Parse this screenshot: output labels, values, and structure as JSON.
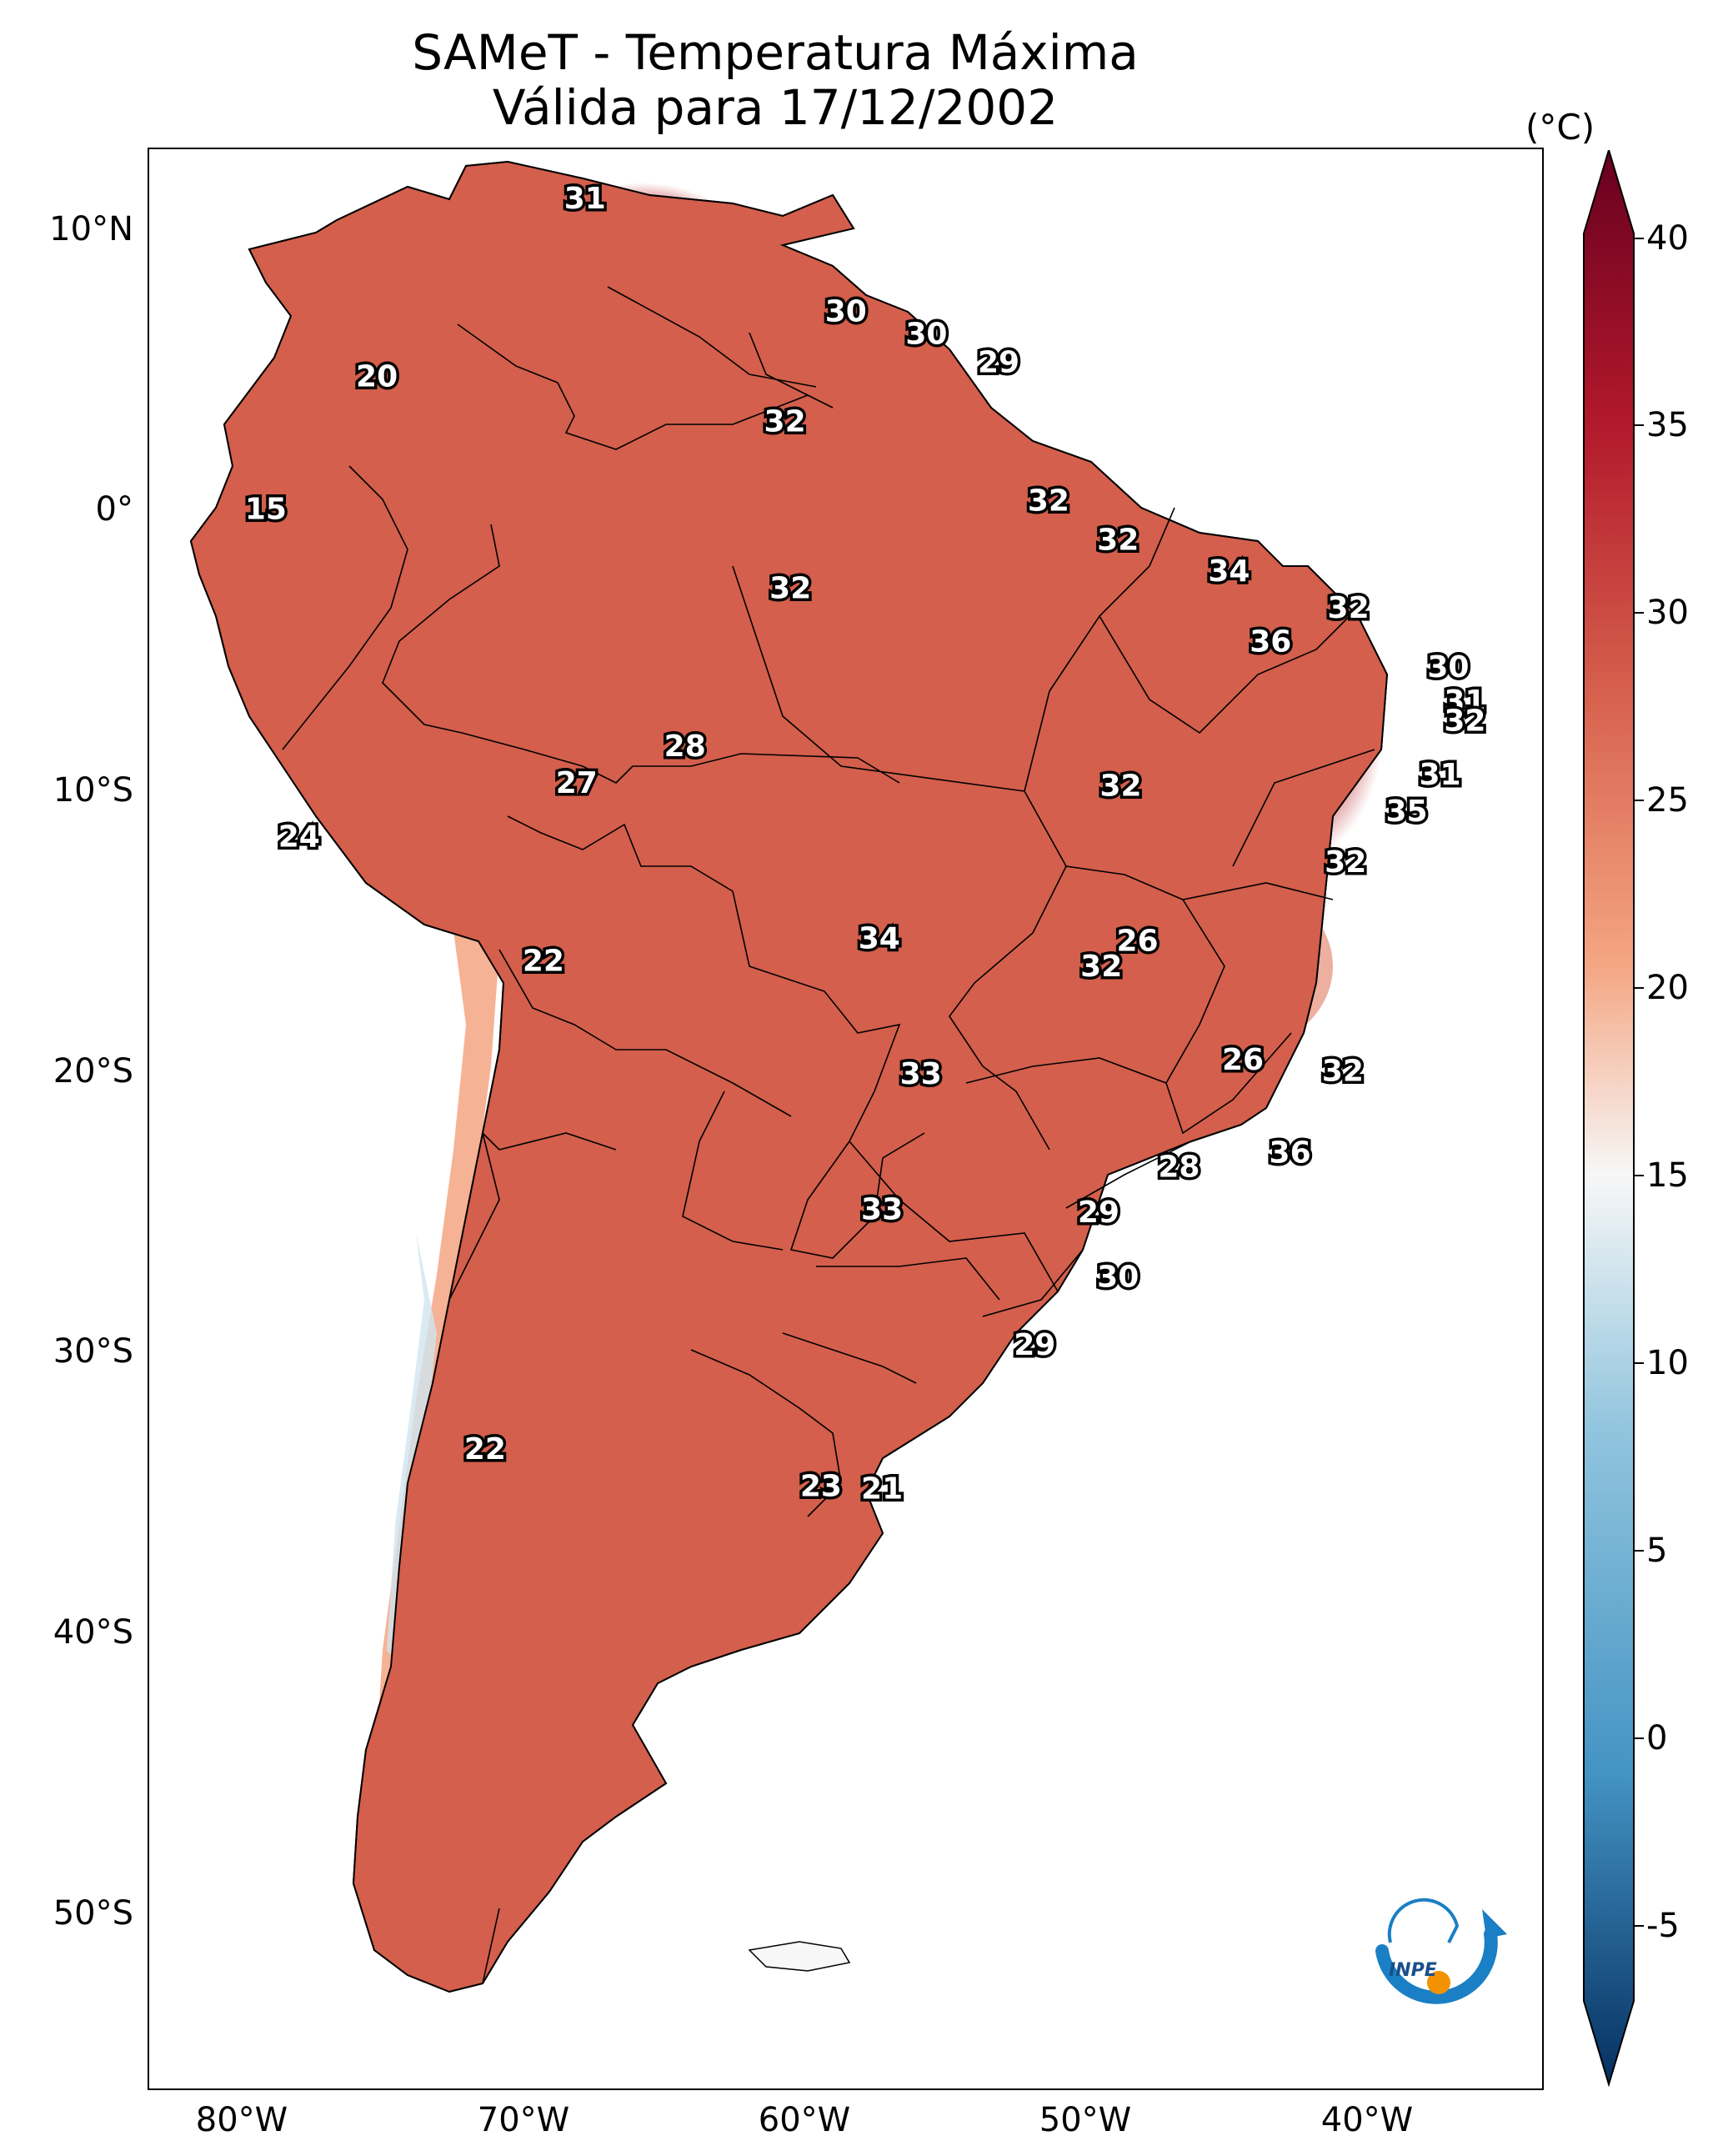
{
  "title": {
    "line1": "SAMeT - Temperatura Máxima",
    "line2": "Válida para 17/12/2002"
  },
  "axes": {
    "lat_ticks": [
      "10°N",
      "0°",
      "10°S",
      "20°S",
      "30°S",
      "40°S",
      "50°S"
    ],
    "lon_ticks": [
      "80°W",
      "70°W",
      "60°W",
      "50°W",
      "40°W"
    ]
  },
  "colorbar": {
    "unit": "(°C)",
    "ticks": [
      "40",
      "35",
      "30",
      "25",
      "20",
      "15",
      "10",
      "5",
      "0",
      "-5"
    ],
    "min": -7,
    "max": 40,
    "colors": {
      "hot": "#67001f",
      "warm": "#d6604d",
      "mild": "#f4a582",
      "neutral": "#f7f7f7",
      "cool": "#92c5de",
      "cold": "#2166ac",
      "coldest": "#053061"
    }
  },
  "contour_labels": [
    {
      "value": "31",
      "lon": -67.3,
      "lat": 10.7
    },
    {
      "value": "30",
      "lon": -57.9,
      "lat": 6.7
    },
    {
      "value": "30",
      "lon": -55.0,
      "lat": 5.9
    },
    {
      "value": "29",
      "lon": -52.4,
      "lat": 4.9
    },
    {
      "value": "20",
      "lon": -74.8,
      "lat": 4.4
    },
    {
      "value": "32",
      "lon": -60.1,
      "lat": 2.8
    },
    {
      "value": "15",
      "lon": -78.8,
      "lat": -0.3
    },
    {
      "value": "32",
      "lon": -50.6,
      "lat": 0.0
    },
    {
      "value": "32",
      "lon": -48.1,
      "lat": -1.4
    },
    {
      "value": "34",
      "lon": -44.1,
      "lat": -2.5
    },
    {
      "value": "32",
      "lon": -59.9,
      "lat": -3.1
    },
    {
      "value": "32",
      "lon": -39.8,
      "lat": -3.8
    },
    {
      "value": "36",
      "lon": -42.6,
      "lat": -5.0
    },
    {
      "value": "30",
      "lon": -36.2,
      "lat": -5.9
    },
    {
      "value": "31",
      "lon": -35.6,
      "lat": -7.1
    },
    {
      "value": "32",
      "lon": -35.6,
      "lat": -7.8
    },
    {
      "value": "28",
      "lon": -63.7,
      "lat": -8.7
    },
    {
      "value": "31",
      "lon": -36.5,
      "lat": -9.7
    },
    {
      "value": "27",
      "lon": -67.6,
      "lat": -10.0
    },
    {
      "value": "32",
      "lon": -48.0,
      "lat": -10.1
    },
    {
      "value": "35",
      "lon": -37.7,
      "lat": -11.0
    },
    {
      "value": "24",
      "lon": -77.6,
      "lat": -11.9
    },
    {
      "value": "32",
      "lon": -39.9,
      "lat": -12.8
    },
    {
      "value": "34",
      "lon": -56.7,
      "lat": -15.5
    },
    {
      "value": "26",
      "lon": -47.4,
      "lat": -15.6
    },
    {
      "value": "32",
      "lon": -48.7,
      "lat": -16.5
    },
    {
      "value": "22",
      "lon": -68.8,
      "lat": -16.3
    },
    {
      "value": "26",
      "lon": -43.6,
      "lat": -19.8
    },
    {
      "value": "32",
      "lon": -40.0,
      "lat": -20.2
    },
    {
      "value": "33",
      "lon": -55.2,
      "lat": -20.3
    },
    {
      "value": "36",
      "lon": -41.9,
      "lat": -23.1
    },
    {
      "value": "28",
      "lon": -45.9,
      "lat": -23.6
    },
    {
      "value": "33",
      "lon": -56.6,
      "lat": -25.1
    },
    {
      "value": "29",
      "lon": -48.8,
      "lat": -25.2
    },
    {
      "value": "30",
      "lon": -48.1,
      "lat": -27.5
    },
    {
      "value": "29",
      "lon": -51.1,
      "lat": -29.9
    },
    {
      "value": "22",
      "lon": -70.9,
      "lat": -33.6
    },
    {
      "value": "23",
      "lon": -58.8,
      "lat": -34.9
    },
    {
      "value": "21",
      "lon": -56.6,
      "lat": -35.0
    }
  ]
}
